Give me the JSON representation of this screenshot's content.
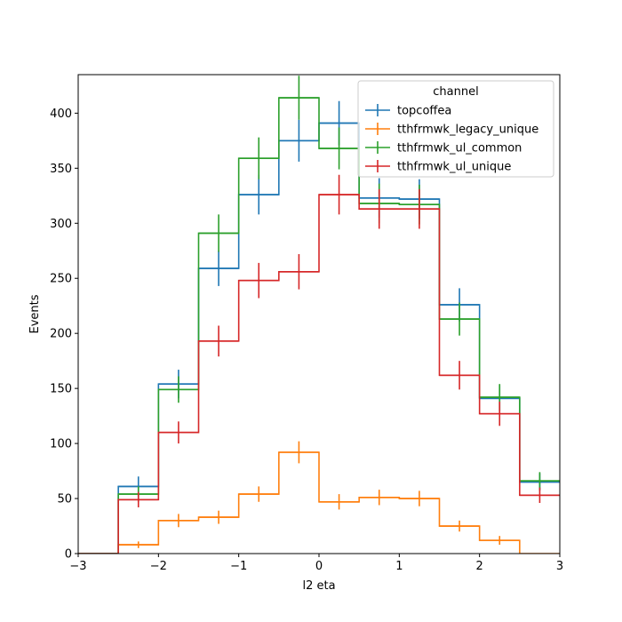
{
  "chart_data": {
    "type": "step",
    "xlabel": "l2 eta",
    "ylabel": "Events",
    "xlim": [
      -3,
      3
    ],
    "ylim": [
      0,
      435
    ],
    "xticks": [
      -3,
      -2,
      -1,
      0,
      1,
      2,
      3
    ],
    "yticks": [
      0,
      50,
      100,
      150,
      200,
      250,
      300,
      350,
      400
    ],
    "bin_edges": [
      -3.0,
      -2.5,
      -2.0,
      -1.5,
      -1.0,
      -0.5,
      0.0,
      0.5,
      1.0,
      1.5,
      2.0,
      2.5,
      3.0
    ],
    "legend": {
      "title": "channel",
      "placement": "top-right"
    },
    "series": [
      {
        "name": "topcoffea",
        "color": "#1f77b4",
        "values": [
          0,
          61,
          154,
          259,
          326,
          375,
          391,
          323,
          322,
          226,
          141,
          65
        ],
        "errors": [
          0,
          9,
          13,
          16,
          18,
          19,
          20,
          18,
          18,
          15,
          12,
          8
        ]
      },
      {
        "name": "tthfrmwk_legacy_unique",
        "color": "#ff7f0e",
        "values": [
          0,
          8,
          30,
          33,
          54,
          92,
          47,
          51,
          50,
          25,
          12,
          0
        ],
        "errors": [
          0,
          3,
          6,
          6,
          7,
          10,
          7,
          7,
          7,
          5,
          4,
          0
        ]
      },
      {
        "name": "tthfrmwk_ul_common",
        "color": "#2ca02c",
        "values": [
          0,
          54,
          149,
          291,
          359,
          414,
          368,
          318,
          317,
          213,
          142,
          66
        ],
        "errors": [
          0,
          7,
          12,
          17,
          19,
          20,
          19,
          18,
          18,
          15,
          12,
          8
        ]
      },
      {
        "name": "tthfrmwk_ul_unique",
        "color": "#d62728",
        "values": [
          0,
          49,
          110,
          193,
          248,
          256,
          326,
          313,
          313,
          162,
          127,
          53
        ],
        "errors": [
          0,
          7,
          10,
          14,
          16,
          16,
          18,
          18,
          18,
          13,
          11,
          7
        ]
      }
    ]
  }
}
